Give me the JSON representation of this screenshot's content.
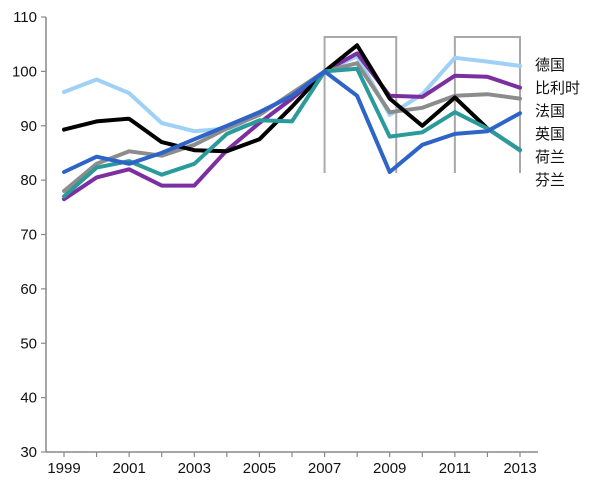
{
  "chart_data": {
    "type": "line",
    "title": "",
    "xlabel": "",
    "ylabel": "",
    "xlim": [
      1999,
      2013
    ],
    "ylim": [
      30,
      110
    ],
    "yticks": [
      30,
      40,
      50,
      60,
      70,
      80,
      90,
      100,
      110
    ],
    "xticks": [
      1999,
      2001,
      2003,
      2005,
      2007,
      2009,
      2011,
      2013
    ],
    "grid": false,
    "legend_placement": "right",
    "highlight_ranges": [
      [
        2007,
        2009.2
      ],
      [
        2011,
        2013
      ]
    ],
    "x": [
      1999,
      2000,
      2001,
      2002,
      2003,
      2004,
      2005,
      2006,
      2007,
      2008,
      2009,
      2010,
      2011,
      2012,
      2013
    ],
    "series": [
      {
        "name": "德国",
        "color": "#9fd0f5",
        "values": [
          96.2,
          98.5,
          96.0,
          90.5,
          89.0,
          89.5,
          90.5,
          95.0,
          100.0,
          102.8,
          92.0,
          95.8,
          102.5,
          101.8,
          101.0
        ]
      },
      {
        "name": "比利时",
        "color": "#7b2fa0",
        "values": [
          76.5,
          80.5,
          82.0,
          79.0,
          79.0,
          85.5,
          90.5,
          95.0,
          100.0,
          103.3,
          95.5,
          95.3,
          99.2,
          99.0,
          97.0
        ]
      },
      {
        "name": "法国",
        "color": "#8c8c8c",
        "values": [
          78.0,
          83.0,
          85.3,
          84.5,
          86.5,
          89.5,
          92.0,
          96.0,
          100.0,
          101.5,
          92.5,
          93.3,
          95.5,
          95.8,
          95.0
        ]
      },
      {
        "name": "英国",
        "color": "#000000",
        "values": [
          89.3,
          90.8,
          91.3,
          87.0,
          85.5,
          85.3,
          87.5,
          93.5,
          100.0,
          104.8,
          95.0,
          90.0,
          95.2,
          89.5,
          85.5
        ]
      },
      {
        "name": "荷兰",
        "color": "#2a9a9a",
        "values": [
          77.0,
          82.3,
          83.5,
          81.0,
          83.0,
          88.5,
          91.0,
          90.8,
          100.0,
          100.5,
          88.0,
          88.8,
          92.5,
          89.5,
          85.5
        ]
      },
      {
        "name": "芬兰",
        "color": "#2e63c8",
        "values": [
          81.5,
          84.3,
          83.0,
          85.0,
          87.5,
          90.0,
          92.5,
          95.5,
          100.0,
          95.5,
          81.5,
          86.5,
          88.5,
          89.0,
          92.3
        ]
      }
    ],
    "legend_order": [
      "德国",
      "比利时",
      "法国",
      "英国",
      "荷兰",
      "芬兰"
    ]
  }
}
